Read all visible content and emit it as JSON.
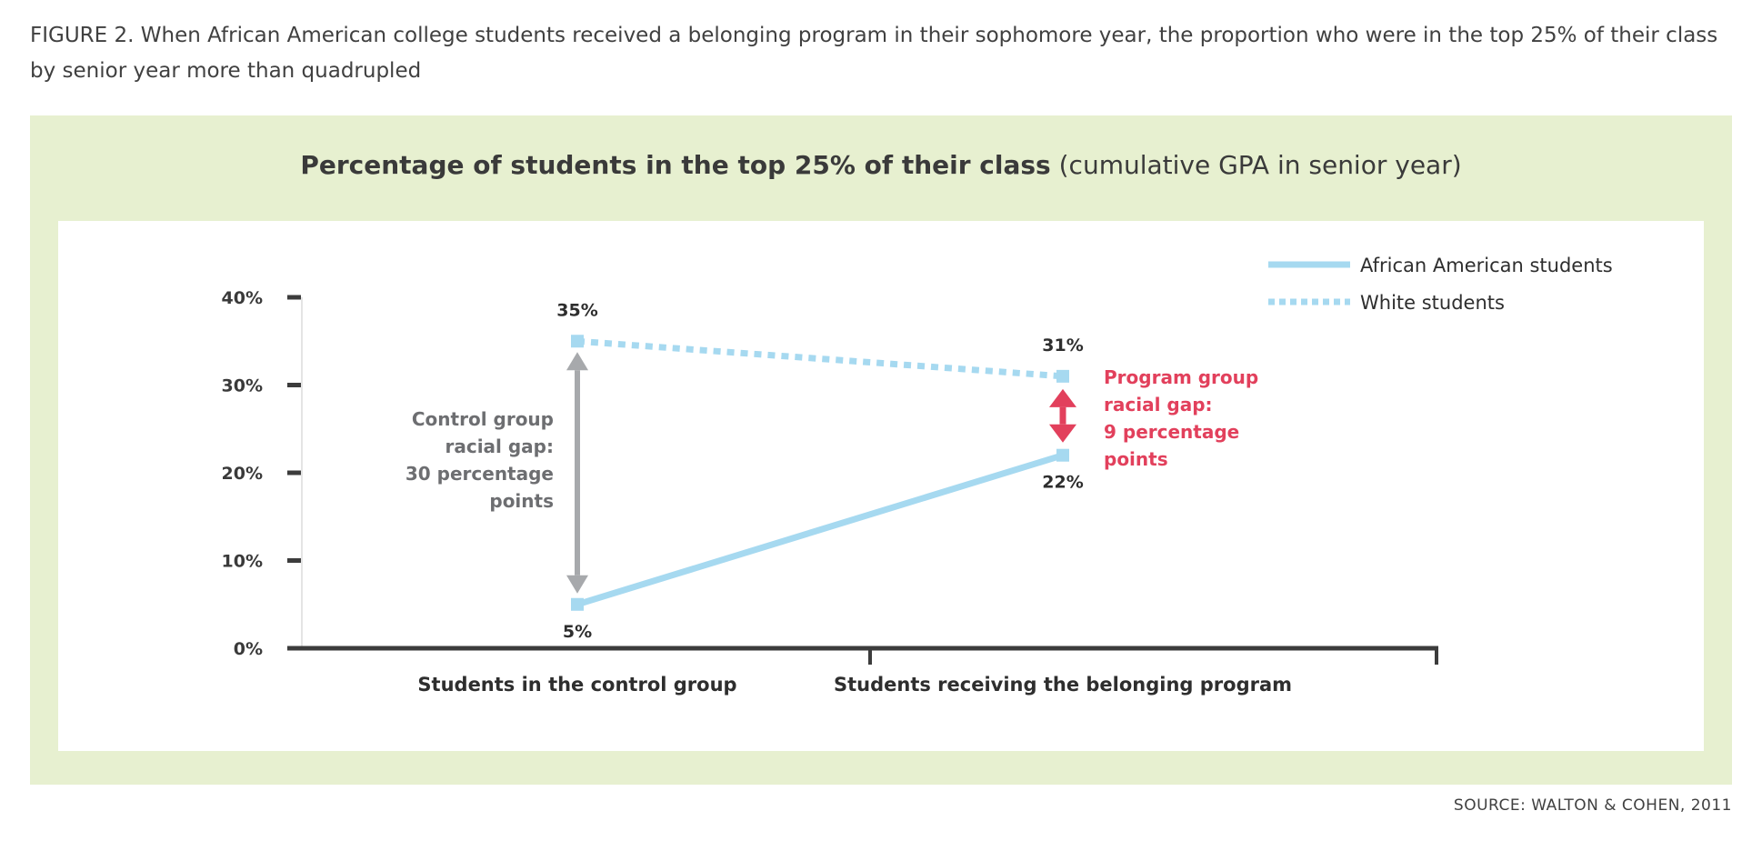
{
  "caption": "FIGURE 2. When African American college students received a belonging program in their sophomore year, the proportion who were in the top 25% of their class by senior year more than quadrupled",
  "source": "SOURCE: WALTON & COHEN, 2011",
  "colors": {
    "panel_bg": "#e7f0d0",
    "series_line": "#a6d9f0",
    "gap_control": "#a7a9ac",
    "gap_program": "#e2405c",
    "axis": "#3c3c3c"
  },
  "chart_data": {
    "type": "line",
    "title_bold": "Percentage of students in the top 25% of their class",
    "title_rest": "(cumulative GPA in senior year)",
    "categories": [
      "Students in the control group",
      "Students receiving the belonging program"
    ],
    "series": [
      {
        "name": "African American students",
        "style": "solid",
        "values": [
          5,
          22
        ],
        "labels": [
          "5%",
          "22%"
        ]
      },
      {
        "name": "White students",
        "style": "dotted",
        "values": [
          35,
          31
        ],
        "labels": [
          "35%",
          "31%"
        ]
      }
    ],
    "ylim": [
      0,
      40
    ],
    "yticks": [
      "0%",
      "10%",
      "20%",
      "30%",
      "40%"
    ],
    "ytick_values": [
      0,
      10,
      20,
      30,
      40
    ],
    "grid": false,
    "legend": "top-right",
    "annotations": [
      {
        "lines": [
          "Control group",
          "racial gap:",
          "30 percentage",
          "points"
        ],
        "category": 0
      },
      {
        "lines": [
          "Program group",
          "racial gap:",
          "9 percentage",
          "points"
        ],
        "category": 1
      }
    ]
  }
}
